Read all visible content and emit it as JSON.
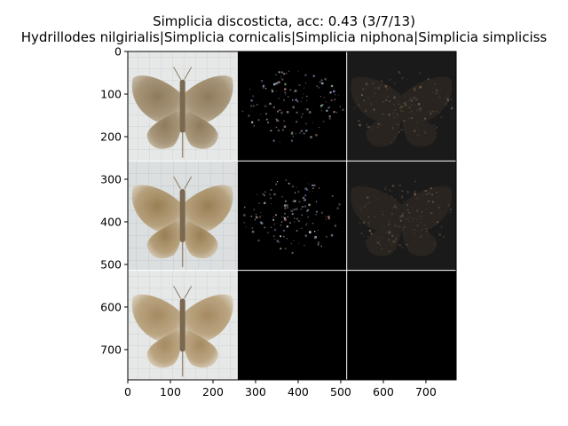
{
  "figure": {
    "title_line1": "Simplicia discosticta, acc: 0.43 (3/7/13)",
    "title_line2": "Hydrillodes nilgirialis|Simplicia cornicalis|Simplicia niphona|Simplicia simpliciss"
  },
  "axes": {
    "x_ticks": [
      0,
      100,
      200,
      300,
      400,
      500,
      600,
      700
    ],
    "y_ticks": [
      0,
      100,
      200,
      300,
      400,
      500,
      600,
      700
    ],
    "x_range": [
      0,
      771
    ],
    "y_range": [
      0,
      771
    ],
    "separator_color": "#ffffff"
  },
  "grid": {
    "rows": 3,
    "cols": 3,
    "cell_size": 257,
    "cells": [
      [
        "moth-photo",
        "saliency-map-bright",
        "saliency-map-dim"
      ],
      [
        "moth-photo",
        "saliency-map-bright",
        "saliency-map-dim"
      ],
      [
        "moth-photo",
        "black",
        "black"
      ]
    ]
  }
}
